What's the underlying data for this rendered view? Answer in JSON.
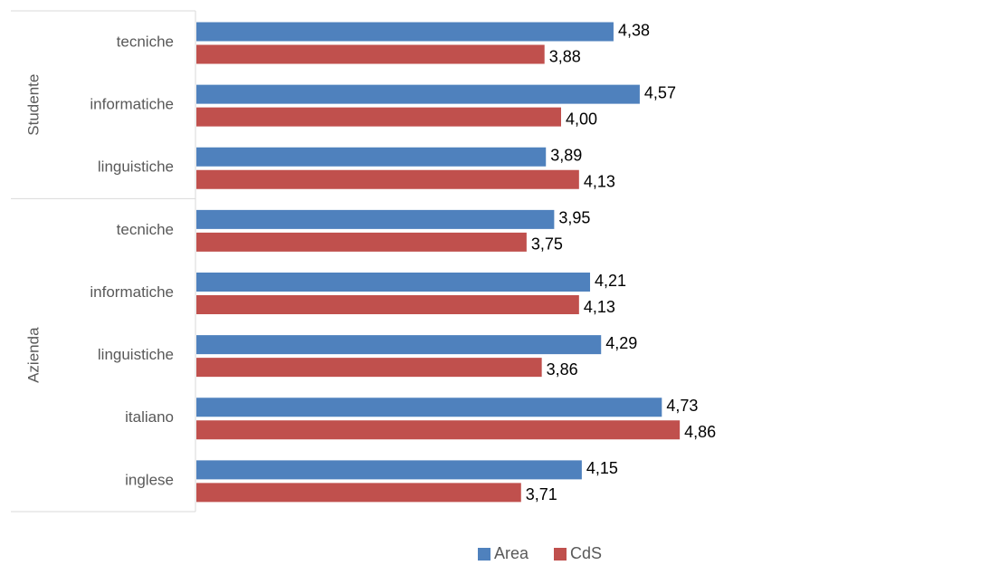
{
  "chart_data": {
    "type": "bar",
    "orientation": "horizontal",
    "groups": [
      {
        "name": "Studente",
        "categories": [
          "tecniche",
          "informatiche",
          "linguistiche"
        ]
      },
      {
        "name": "Azienda",
        "categories": [
          "tecniche",
          "informatiche",
          "linguistiche",
          "italiano",
          "inglese"
        ]
      }
    ],
    "series": [
      {
        "name": "Area",
        "color": "#4F81BD",
        "values": [
          4.38,
          4.57,
          3.89,
          3.95,
          4.21,
          4.29,
          4.73,
          4.15
        ],
        "labels": [
          "4,38",
          "4,57",
          "3,89",
          "3,95",
          "4,21",
          "4,29",
          "4,73",
          "4,15"
        ]
      },
      {
        "name": "CdS",
        "color": "#C0504D",
        "values": [
          3.88,
          4.0,
          4.13,
          3.75,
          4.13,
          3.86,
          4.86,
          3.71
        ],
        "labels": [
          "3,88",
          "4,00",
          "4,13",
          "3,75",
          "4,13",
          "3,86",
          "4,86",
          "3,71"
        ]
      }
    ],
    "legend_position": "bottom",
    "grid": false,
    "title": "",
    "xlabel": "",
    "ylabel": ""
  }
}
